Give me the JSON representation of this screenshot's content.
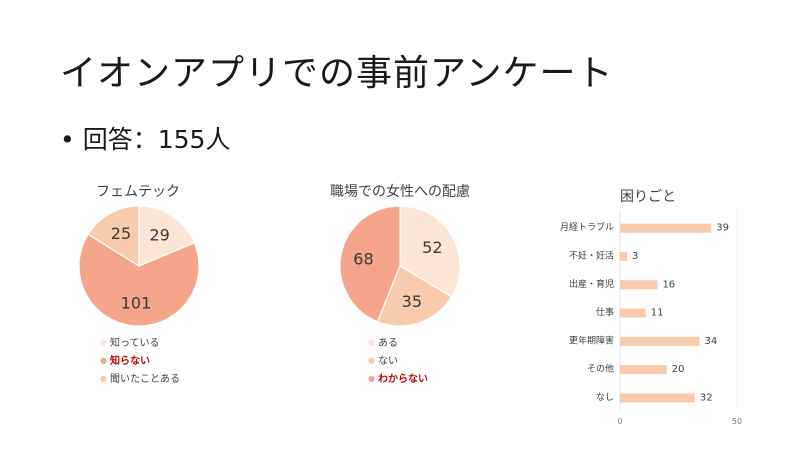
{
  "slide": {
    "title": "イオンアプリでの事前アンケート",
    "bullet": "回答：155人"
  },
  "chart_data": [
    {
      "type": "pie",
      "title": "フェムテック",
      "labels": [
        "知っている",
        "知らない",
        "聞いたことある"
      ],
      "values": [
        29,
        101,
        25
      ],
      "colors": [
        "#fbe5d6",
        "#f4a58a",
        "#f8cbad"
      ],
      "highlight": [
        false,
        true,
        false
      ],
      "legend": "bottom"
    },
    {
      "type": "pie",
      "title": "職場での女性への配慮",
      "labels": [
        "ある",
        "ない",
        "わからない"
      ],
      "values": [
        52,
        35,
        68
      ],
      "colors": [
        "#fbe5d6",
        "#f8cbad",
        "#f4a58a"
      ],
      "highlight": [
        false,
        false,
        true
      ],
      "legend": "bottom"
    },
    {
      "type": "bar",
      "orientation": "horizontal",
      "title": "困りごと",
      "categories": [
        "月経トラブル",
        "不妊・妊活",
        "出産・育児",
        "仕事",
        "更年期障害",
        "その他",
        "なし"
      ],
      "values": [
        39,
        3,
        16,
        11,
        34,
        20,
        32
      ],
      "color": "#f8cbad",
      "xlim": [
        0,
        50
      ],
      "xticks": [
        0,
        50
      ],
      "grid": false
    }
  ]
}
